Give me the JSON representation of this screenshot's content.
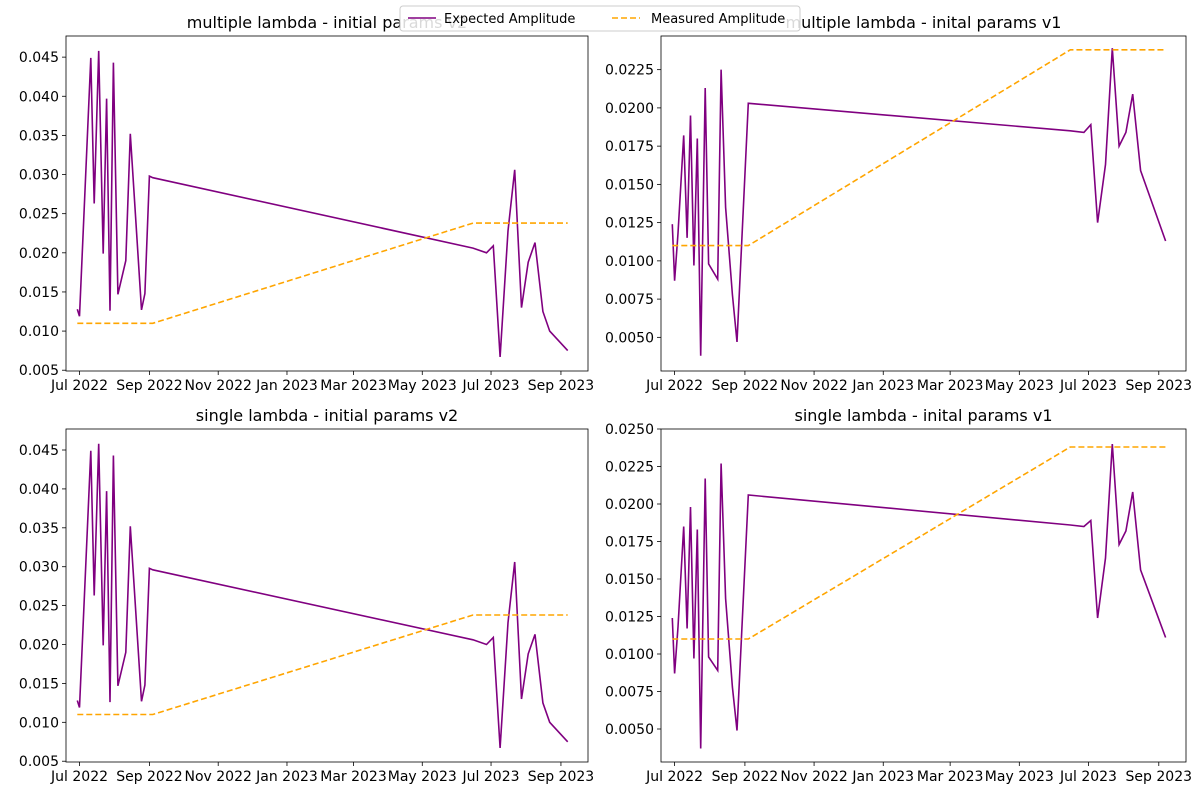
{
  "legend": {
    "placement": "top-center",
    "entries": [
      {
        "label": "Expected Amplitude",
        "color": "#800080",
        "style": "solid"
      },
      {
        "label": "Measured Amplitude",
        "color": "#FFA500",
        "style": "dashed"
      }
    ]
  },
  "chart_data": [
    {
      "type": "line",
      "title": "multiple lambda - initial params v2",
      "xlabel": "",
      "ylabel": "",
      "xlim": [
        "2022-06-19",
        "2023-09-25"
      ],
      "ylim": [
        0.0049,
        0.0477
      ],
      "x_ticks": [
        {
          "label": "Jul 2022",
          "date": "2022-07-01"
        },
        {
          "label": "Sep 2022",
          "date": "2022-09-01"
        },
        {
          "label": "Nov 2022",
          "date": "2022-11-01"
        },
        {
          "label": "Jan 2023",
          "date": "2023-01-01"
        },
        {
          "label": "Mar 2023",
          "date": "2023-03-01"
        },
        {
          "label": "May 2023",
          "date": "2023-05-01"
        },
        {
          "label": "Jul 2023",
          "date": "2023-07-01"
        },
        {
          "label": "Sep 2023",
          "date": "2023-09-01"
        }
      ],
      "y_ticks": [
        {
          "label": "0.005",
          "value": 0.005
        },
        {
          "label": "0.010",
          "value": 0.01
        },
        {
          "label": "0.015",
          "value": 0.015
        },
        {
          "label": "0.020",
          "value": 0.02
        },
        {
          "label": "0.025",
          "value": 0.025
        },
        {
          "label": "0.030",
          "value": 0.03
        },
        {
          "label": "0.035",
          "value": 0.035
        },
        {
          "label": "0.040",
          "value": 0.04
        },
        {
          "label": "0.045",
          "value": 0.045
        }
      ],
      "series": [
        {
          "name": "Expected Amplitude",
          "color": "#800080",
          "dashed": false,
          "x": [
            "2022-06-29",
            "2022-07-01",
            "2022-07-11",
            "2022-07-14",
            "2022-07-18",
            "2022-07-22",
            "2022-07-25",
            "2022-07-28",
            "2022-07-31",
            "2022-08-04",
            "2022-08-11",
            "2022-08-15",
            "2022-08-25",
            "2022-08-28",
            "2022-09-01",
            "2022-09-04",
            "2023-06-15",
            "2023-06-27",
            "2023-07-03",
            "2023-07-09",
            "2023-07-16",
            "2023-07-22",
            "2023-07-28",
            "2023-08-03",
            "2023-08-09",
            "2023-08-16",
            "2023-08-22",
            "2023-09-07"
          ],
          "y": [
            0.0128,
            0.0119,
            0.0449,
            0.0263,
            0.0458,
            0.0199,
            0.0397,
            0.0126,
            0.0443,
            0.0147,
            0.019,
            0.0352,
            0.0127,
            0.0148,
            0.0298,
            0.0296,
            0.0206,
            0.02,
            0.0209,
            0.0067,
            0.0228,
            0.0306,
            0.013,
            0.0188,
            0.0213,
            0.0125,
            0.01,
            0.0075
          ]
        },
        {
          "name": "Measured Amplitude",
          "color": "#FFA500",
          "dashed": true,
          "x": [
            "2022-06-29",
            "2022-09-04",
            "2023-06-15",
            "2023-09-07"
          ],
          "y": [
            0.011,
            0.011,
            0.0238,
            0.0238
          ]
        }
      ]
    },
    {
      "type": "line",
      "title": "multiple lambda - inital params v1",
      "xlabel": "",
      "ylabel": "",
      "xlim": [
        "2022-06-19",
        "2023-09-25"
      ],
      "ylim": [
        0.0028,
        0.0247
      ],
      "x_ticks": [
        {
          "label": "Jul 2022",
          "date": "2022-07-01"
        },
        {
          "label": "Sep 2022",
          "date": "2022-09-01"
        },
        {
          "label": "Nov 2022",
          "date": "2022-11-01"
        },
        {
          "label": "Jan 2023",
          "date": "2023-01-01"
        },
        {
          "label": "Mar 2023",
          "date": "2023-03-01"
        },
        {
          "label": "May 2023",
          "date": "2023-05-01"
        },
        {
          "label": "Jul 2023",
          "date": "2023-07-01"
        },
        {
          "label": "Sep 2023",
          "date": "2023-09-01"
        }
      ],
      "y_ticks": [
        {
          "label": "0.0050",
          "value": 0.005
        },
        {
          "label": "0.0075",
          "value": 0.0075
        },
        {
          "label": "0.0100",
          "value": 0.01
        },
        {
          "label": "0.0125",
          "value": 0.0125
        },
        {
          "label": "0.0150",
          "value": 0.015
        },
        {
          "label": "0.0175",
          "value": 0.0175
        },
        {
          "label": "0.0200",
          "value": 0.02
        },
        {
          "label": "0.0225",
          "value": 0.0225
        }
      ],
      "series": [
        {
          "name": "Expected Amplitude",
          "color": "#800080",
          "dashed": false,
          "x": [
            "2022-06-29",
            "2022-07-01",
            "2022-07-04",
            "2022-07-09",
            "2022-07-12",
            "2022-07-15",
            "2022-07-18",
            "2022-07-21",
            "2022-07-24",
            "2022-07-28",
            "2022-07-31",
            "2022-08-08",
            "2022-08-11",
            "2022-08-15",
            "2022-08-21",
            "2022-08-25",
            "2022-09-04",
            "2023-06-15",
            "2023-06-27",
            "2023-07-03",
            "2023-07-09",
            "2023-07-16",
            "2023-07-22",
            "2023-07-28",
            "2023-08-03",
            "2023-08-09",
            "2023-08-16",
            "2023-09-07"
          ],
          "y": [
            0.0124,
            0.0087,
            0.0118,
            0.0182,
            0.0115,
            0.0195,
            0.0097,
            0.018,
            0.0038,
            0.0213,
            0.0098,
            0.0088,
            0.0225,
            0.0135,
            0.0078,
            0.0047,
            0.0203,
            0.0185,
            0.0184,
            0.0189,
            0.0125,
            0.0163,
            0.0239,
            0.0175,
            0.0184,
            0.0209,
            0.0159,
            0.0113
          ]
        },
        {
          "name": "Measured Amplitude",
          "color": "#FFA500",
          "dashed": true,
          "x": [
            "2022-06-29",
            "2022-09-04",
            "2023-06-15",
            "2023-09-07"
          ],
          "y": [
            0.011,
            0.011,
            0.0238,
            0.0238
          ]
        }
      ]
    },
    {
      "type": "line",
      "title": "single lambda - initial params v2",
      "xlabel": "",
      "ylabel": "",
      "xlim": [
        "2022-06-19",
        "2023-09-25"
      ],
      "ylim": [
        0.0049,
        0.0477
      ],
      "x_ticks": [
        {
          "label": "Jul 2022",
          "date": "2022-07-01"
        },
        {
          "label": "Sep 2022",
          "date": "2022-09-01"
        },
        {
          "label": "Nov 2022",
          "date": "2022-11-01"
        },
        {
          "label": "Jan 2023",
          "date": "2023-01-01"
        },
        {
          "label": "Mar 2023",
          "date": "2023-03-01"
        },
        {
          "label": "May 2023",
          "date": "2023-05-01"
        },
        {
          "label": "Jul 2023",
          "date": "2023-07-01"
        },
        {
          "label": "Sep 2023",
          "date": "2023-09-01"
        }
      ],
      "y_ticks": [
        {
          "label": "0.005",
          "value": 0.005
        },
        {
          "label": "0.010",
          "value": 0.01
        },
        {
          "label": "0.015",
          "value": 0.015
        },
        {
          "label": "0.020",
          "value": 0.02
        },
        {
          "label": "0.025",
          "value": 0.025
        },
        {
          "label": "0.030",
          "value": 0.03
        },
        {
          "label": "0.035",
          "value": 0.035
        },
        {
          "label": "0.040",
          "value": 0.04
        },
        {
          "label": "0.045",
          "value": 0.045
        }
      ],
      "series": [
        {
          "name": "Expected Amplitude",
          "color": "#800080",
          "dashed": false,
          "x": [
            "2022-06-29",
            "2022-07-01",
            "2022-07-11",
            "2022-07-14",
            "2022-07-18",
            "2022-07-22",
            "2022-07-25",
            "2022-07-28",
            "2022-07-31",
            "2022-08-04",
            "2022-08-11",
            "2022-08-15",
            "2022-08-25",
            "2022-08-28",
            "2022-09-01",
            "2022-09-04",
            "2023-06-15",
            "2023-06-27",
            "2023-07-03",
            "2023-07-09",
            "2023-07-16",
            "2023-07-22",
            "2023-07-28",
            "2023-08-03",
            "2023-08-09",
            "2023-08-16",
            "2023-08-22",
            "2023-09-07"
          ],
          "y": [
            0.0128,
            0.0119,
            0.0449,
            0.0263,
            0.0458,
            0.0199,
            0.0397,
            0.0126,
            0.0443,
            0.0147,
            0.019,
            0.0352,
            0.0127,
            0.0148,
            0.0298,
            0.0296,
            0.0206,
            0.02,
            0.0209,
            0.0067,
            0.0228,
            0.0306,
            0.013,
            0.0188,
            0.0213,
            0.0125,
            0.01,
            0.0075
          ]
        },
        {
          "name": "Measured Amplitude",
          "color": "#FFA500",
          "dashed": true,
          "x": [
            "2022-06-29",
            "2022-09-04",
            "2023-06-15",
            "2023-09-07"
          ],
          "y": [
            0.011,
            0.011,
            0.0238,
            0.0238
          ]
        }
      ]
    },
    {
      "type": "line",
      "title": "single lambda - inital params v1",
      "xlabel": "",
      "ylabel": "",
      "xlim": [
        "2022-06-19",
        "2023-09-25"
      ],
      "ylim": [
        0.0028,
        0.025
      ],
      "x_ticks": [
        {
          "label": "Jul 2022",
          "date": "2022-07-01"
        },
        {
          "label": "Sep 2022",
          "date": "2022-09-01"
        },
        {
          "label": "Nov 2022",
          "date": "2022-11-01"
        },
        {
          "label": "Jan 2023",
          "date": "2023-01-01"
        },
        {
          "label": "Mar 2023",
          "date": "2023-03-01"
        },
        {
          "label": "May 2023",
          "date": "2023-05-01"
        },
        {
          "label": "Jul 2023",
          "date": "2023-07-01"
        },
        {
          "label": "Sep 2023",
          "date": "2023-09-01"
        }
      ],
      "y_ticks": [
        {
          "label": "0.0050",
          "value": 0.005
        },
        {
          "label": "0.0075",
          "value": 0.0075
        },
        {
          "label": "0.0100",
          "value": 0.01
        },
        {
          "label": "0.0125",
          "value": 0.0125
        },
        {
          "label": "0.0150",
          "value": 0.015
        },
        {
          "label": "0.0175",
          "value": 0.0175
        },
        {
          "label": "0.0200",
          "value": 0.02
        },
        {
          "label": "0.0225",
          "value": 0.0225
        },
        {
          "label": "0.0250",
          "value": 0.025
        }
      ],
      "series": [
        {
          "name": "Expected Amplitude",
          "color": "#800080",
          "dashed": false,
          "x": [
            "2022-06-29",
            "2022-07-01",
            "2022-07-04",
            "2022-07-09",
            "2022-07-12",
            "2022-07-15",
            "2022-07-18",
            "2022-07-21",
            "2022-07-24",
            "2022-07-28",
            "2022-07-31",
            "2022-08-08",
            "2022-08-11",
            "2022-08-15",
            "2022-08-21",
            "2022-08-25",
            "2022-09-04",
            "2023-06-15",
            "2023-06-27",
            "2023-07-03",
            "2023-07-09",
            "2023-07-16",
            "2023-07-22",
            "2023-07-28",
            "2023-08-03",
            "2023-08-09",
            "2023-08-16",
            "2023-09-07"
          ],
          "y": [
            0.0124,
            0.0087,
            0.0118,
            0.0185,
            0.0117,
            0.0198,
            0.0097,
            0.0183,
            0.0037,
            0.0217,
            0.0098,
            0.0089,
            0.0227,
            0.0137,
            0.0078,
            0.0049,
            0.0206,
            0.0186,
            0.0185,
            0.0189,
            0.0124,
            0.0164,
            0.024,
            0.0173,
            0.0182,
            0.0208,
            0.0156,
            0.0111
          ]
        },
        {
          "name": "Measured Amplitude",
          "color": "#FFA500",
          "dashed": true,
          "x": [
            "2022-06-29",
            "2022-09-04",
            "2023-06-15",
            "2023-09-07"
          ],
          "y": [
            0.011,
            0.011,
            0.0238,
            0.0238
          ]
        }
      ]
    }
  ]
}
